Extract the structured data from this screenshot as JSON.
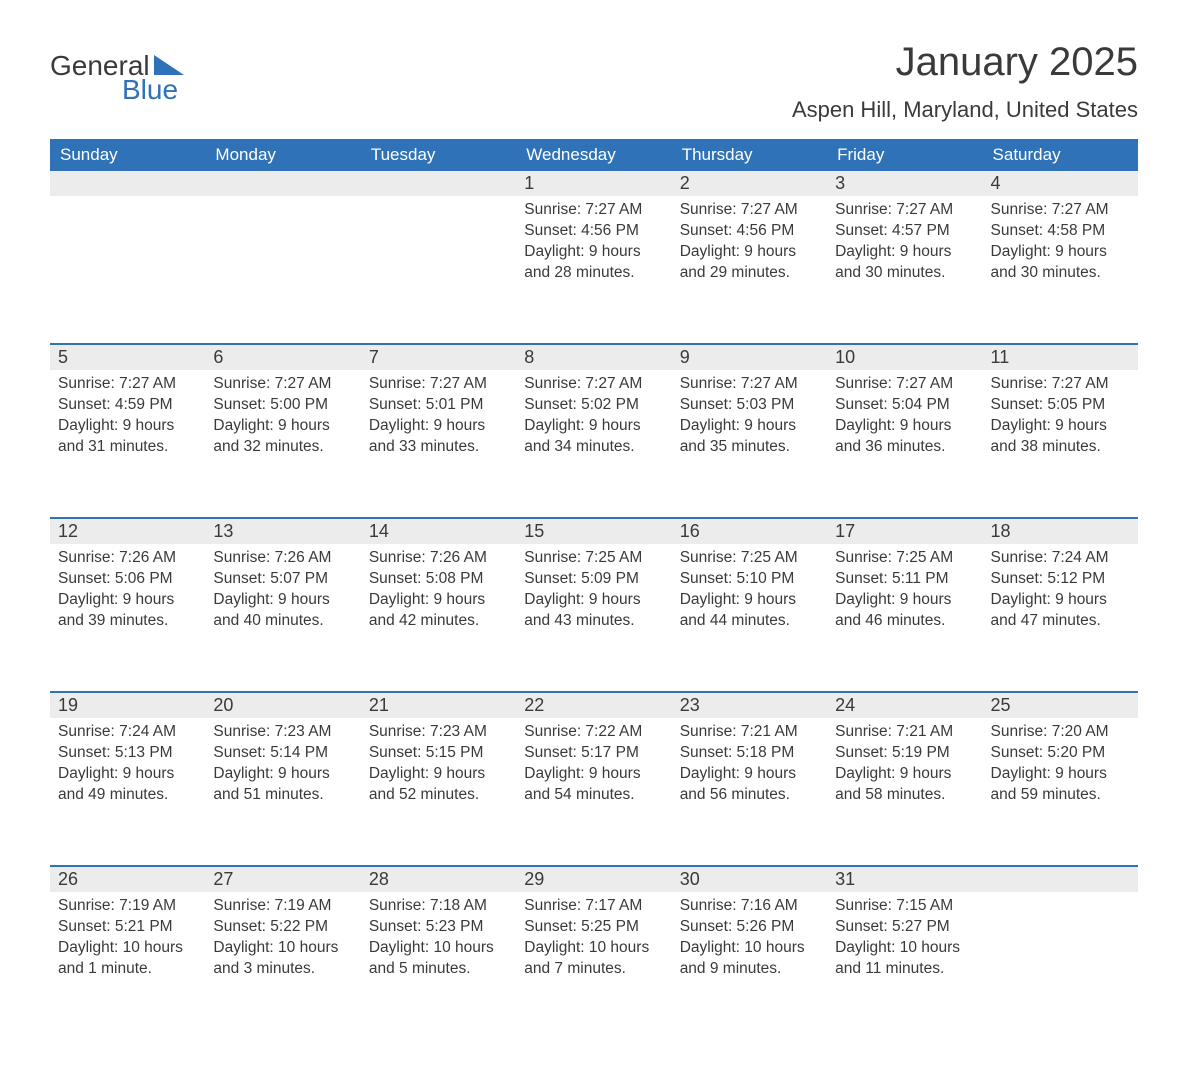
{
  "logo": {
    "word1": "General",
    "word2": "Blue",
    "accent_color": "#2f72b8"
  },
  "title": "January 2025",
  "location": "Aspen Hill, Maryland, United States",
  "colors": {
    "header_bg": "#2f72b8",
    "header_text": "#ffffff",
    "daynum_bg": "#ececec",
    "body_text": "#3a3a3a",
    "rule": "#2f72b8",
    "page_bg": "#ffffff"
  },
  "typography": {
    "title_fontsize": 40,
    "location_fontsize": 22,
    "header_fontsize": 17,
    "daynum_fontsize": 18,
    "body_fontsize": 15.5
  },
  "day_labels": [
    "Sunday",
    "Monday",
    "Tuesday",
    "Wednesday",
    "Thursday",
    "Friday",
    "Saturday"
  ],
  "weeks": [
    [
      null,
      null,
      null,
      {
        "n": "1",
        "sunrise": "Sunrise: 7:27 AM",
        "sunset": "Sunset: 4:56 PM",
        "daylight": "Daylight: 9 hours and 28 minutes."
      },
      {
        "n": "2",
        "sunrise": "Sunrise: 7:27 AM",
        "sunset": "Sunset: 4:56 PM",
        "daylight": "Daylight: 9 hours and 29 minutes."
      },
      {
        "n": "3",
        "sunrise": "Sunrise: 7:27 AM",
        "sunset": "Sunset: 4:57 PM",
        "daylight": "Daylight: 9 hours and 30 minutes."
      },
      {
        "n": "4",
        "sunrise": "Sunrise: 7:27 AM",
        "sunset": "Sunset: 4:58 PM",
        "daylight": "Daylight: 9 hours and 30 minutes."
      }
    ],
    [
      {
        "n": "5",
        "sunrise": "Sunrise: 7:27 AM",
        "sunset": "Sunset: 4:59 PM",
        "daylight": "Daylight: 9 hours and 31 minutes."
      },
      {
        "n": "6",
        "sunrise": "Sunrise: 7:27 AM",
        "sunset": "Sunset: 5:00 PM",
        "daylight": "Daylight: 9 hours and 32 minutes."
      },
      {
        "n": "7",
        "sunrise": "Sunrise: 7:27 AM",
        "sunset": "Sunset: 5:01 PM",
        "daylight": "Daylight: 9 hours and 33 minutes."
      },
      {
        "n": "8",
        "sunrise": "Sunrise: 7:27 AM",
        "sunset": "Sunset: 5:02 PM",
        "daylight": "Daylight: 9 hours and 34 minutes."
      },
      {
        "n": "9",
        "sunrise": "Sunrise: 7:27 AM",
        "sunset": "Sunset: 5:03 PM",
        "daylight": "Daylight: 9 hours and 35 minutes."
      },
      {
        "n": "10",
        "sunrise": "Sunrise: 7:27 AM",
        "sunset": "Sunset: 5:04 PM",
        "daylight": "Daylight: 9 hours and 36 minutes."
      },
      {
        "n": "11",
        "sunrise": "Sunrise: 7:27 AM",
        "sunset": "Sunset: 5:05 PM",
        "daylight": "Daylight: 9 hours and 38 minutes."
      }
    ],
    [
      {
        "n": "12",
        "sunrise": "Sunrise: 7:26 AM",
        "sunset": "Sunset: 5:06 PM",
        "daylight": "Daylight: 9 hours and 39 minutes."
      },
      {
        "n": "13",
        "sunrise": "Sunrise: 7:26 AM",
        "sunset": "Sunset: 5:07 PM",
        "daylight": "Daylight: 9 hours and 40 minutes."
      },
      {
        "n": "14",
        "sunrise": "Sunrise: 7:26 AM",
        "sunset": "Sunset: 5:08 PM",
        "daylight": "Daylight: 9 hours and 42 minutes."
      },
      {
        "n": "15",
        "sunrise": "Sunrise: 7:25 AM",
        "sunset": "Sunset: 5:09 PM",
        "daylight": "Daylight: 9 hours and 43 minutes."
      },
      {
        "n": "16",
        "sunrise": "Sunrise: 7:25 AM",
        "sunset": "Sunset: 5:10 PM",
        "daylight": "Daylight: 9 hours and 44 minutes."
      },
      {
        "n": "17",
        "sunrise": "Sunrise: 7:25 AM",
        "sunset": "Sunset: 5:11 PM",
        "daylight": "Daylight: 9 hours and 46 minutes."
      },
      {
        "n": "18",
        "sunrise": "Sunrise: 7:24 AM",
        "sunset": "Sunset: 5:12 PM",
        "daylight": "Daylight: 9 hours and 47 minutes."
      }
    ],
    [
      {
        "n": "19",
        "sunrise": "Sunrise: 7:24 AM",
        "sunset": "Sunset: 5:13 PM",
        "daylight": "Daylight: 9 hours and 49 minutes."
      },
      {
        "n": "20",
        "sunrise": "Sunrise: 7:23 AM",
        "sunset": "Sunset: 5:14 PM",
        "daylight": "Daylight: 9 hours and 51 minutes."
      },
      {
        "n": "21",
        "sunrise": "Sunrise: 7:23 AM",
        "sunset": "Sunset: 5:15 PM",
        "daylight": "Daylight: 9 hours and 52 minutes."
      },
      {
        "n": "22",
        "sunrise": "Sunrise: 7:22 AM",
        "sunset": "Sunset: 5:17 PM",
        "daylight": "Daylight: 9 hours and 54 minutes."
      },
      {
        "n": "23",
        "sunrise": "Sunrise: 7:21 AM",
        "sunset": "Sunset: 5:18 PM",
        "daylight": "Daylight: 9 hours and 56 minutes."
      },
      {
        "n": "24",
        "sunrise": "Sunrise: 7:21 AM",
        "sunset": "Sunset: 5:19 PM",
        "daylight": "Daylight: 9 hours and 58 minutes."
      },
      {
        "n": "25",
        "sunrise": "Sunrise: 7:20 AM",
        "sunset": "Sunset: 5:20 PM",
        "daylight": "Daylight: 9 hours and 59 minutes."
      }
    ],
    [
      {
        "n": "26",
        "sunrise": "Sunrise: 7:19 AM",
        "sunset": "Sunset: 5:21 PM",
        "daylight": "Daylight: 10 hours and 1 minute."
      },
      {
        "n": "27",
        "sunrise": "Sunrise: 7:19 AM",
        "sunset": "Sunset: 5:22 PM",
        "daylight": "Daylight: 10 hours and 3 minutes."
      },
      {
        "n": "28",
        "sunrise": "Sunrise: 7:18 AM",
        "sunset": "Sunset: 5:23 PM",
        "daylight": "Daylight: 10 hours and 5 minutes."
      },
      {
        "n": "29",
        "sunrise": "Sunrise: 7:17 AM",
        "sunset": "Sunset: 5:25 PM",
        "daylight": "Daylight: 10 hours and 7 minutes."
      },
      {
        "n": "30",
        "sunrise": "Sunrise: 7:16 AM",
        "sunset": "Sunset: 5:26 PM",
        "daylight": "Daylight: 10 hours and 9 minutes."
      },
      {
        "n": "31",
        "sunrise": "Sunrise: 7:15 AM",
        "sunset": "Sunset: 5:27 PM",
        "daylight": "Daylight: 10 hours and 11 minutes."
      },
      null
    ]
  ]
}
